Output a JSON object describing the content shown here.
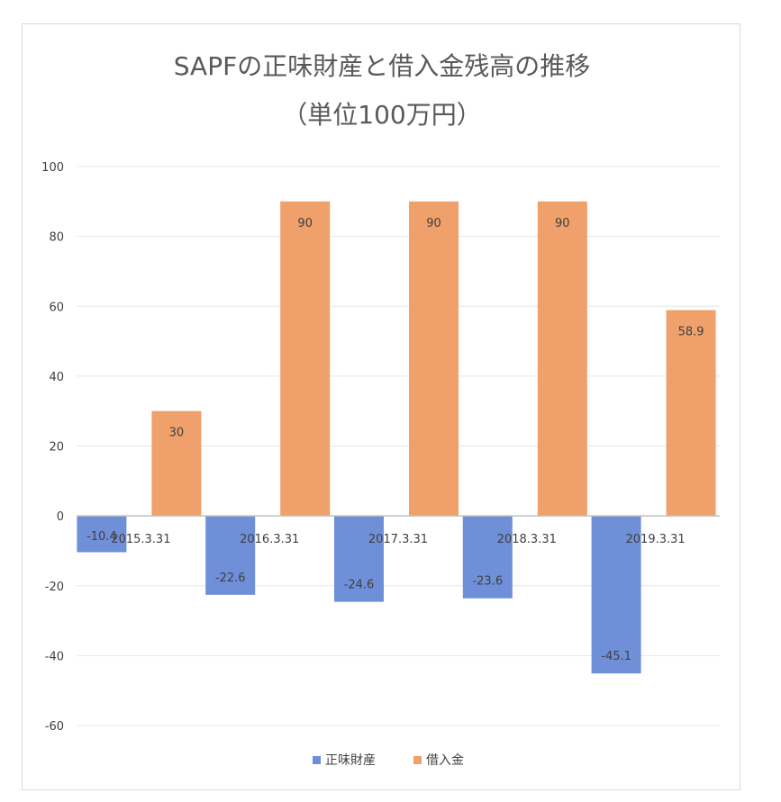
{
  "chart_data": {
    "type": "bar",
    "title": "SAPFの正味財産と借入金残高の推移",
    "subtitle": "（単位100万円）",
    "categories": [
      "2015.3.31",
      "2016.3.31",
      "2017.3.31",
      "2018.3.31",
      "2019.3.31"
    ],
    "series": [
      {
        "name": "正味財産",
        "color": "#6f8fd8",
        "values": [
          -10.4,
          -22.6,
          -24.6,
          -23.6,
          -45.1
        ],
        "labels": [
          "-10.4",
          "-22.6",
          "-24.6",
          "-23.6",
          "-45.1"
        ]
      },
      {
        "name": "借入金",
        "color": "#f0a06a",
        "values": [
          30,
          90,
          90,
          90,
          58.9
        ],
        "labels": [
          "30",
          "90",
          "90",
          "90",
          "58.9"
        ]
      }
    ],
    "yticks": [
      "100",
      "80",
      "60",
      "40",
      "20",
      "0",
      "-20",
      "-40",
      "-60"
    ],
    "ylim": [
      -60,
      100
    ],
    "xlabel": "",
    "ylabel": "",
    "grid": true,
    "legend": "bottom"
  }
}
